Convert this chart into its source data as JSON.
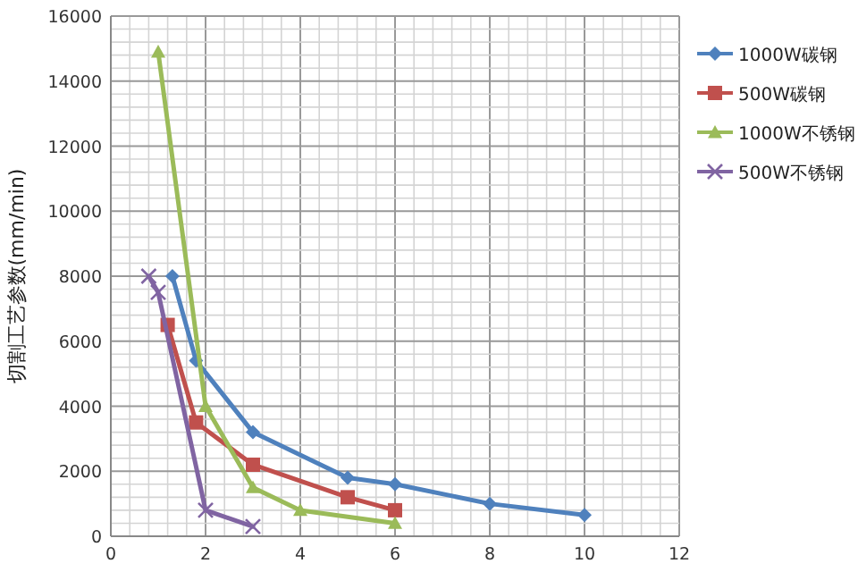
{
  "chart_data": {
    "type": "line",
    "ylabel": "切割工艺参数(mm/min)",
    "xlim": [
      0,
      12
    ],
    "xticks": [
      0,
      2,
      4,
      6,
      8,
      10,
      12
    ],
    "ylim": [
      0,
      16000
    ],
    "yticks": [
      0,
      2000,
      4000,
      6000,
      8000,
      10000,
      12000,
      14000,
      16000
    ],
    "grid": true,
    "legend": "right",
    "series": [
      {
        "name": "1000W碳钢",
        "color": "#4f81bd",
        "marker": "diamond",
        "x": [
          1.3,
          1.8,
          3,
          5,
          6,
          8,
          10
        ],
        "values": [
          8000,
          5400,
          3200,
          1800,
          1600,
          1000,
          650
        ]
      },
      {
        "name": "500W碳钢",
        "color": "#c0504d",
        "marker": "square",
        "x": [
          1.2,
          1.8,
          3,
          5,
          6
        ],
        "values": [
          6500,
          3500,
          2200,
          1200,
          800
        ]
      },
      {
        "name": "1000W不锈钢",
        "color": "#9bbb59",
        "marker": "triangle",
        "x": [
          1,
          2,
          3,
          4,
          6
        ],
        "values": [
          14900,
          4000,
          1500,
          800,
          400
        ]
      },
      {
        "name": "500W不锈钢",
        "color": "#8064a2",
        "marker": "cross",
        "x": [
          0.8,
          1,
          2,
          3
        ],
        "values": [
          8000,
          7500,
          800,
          300
        ]
      }
    ]
  }
}
